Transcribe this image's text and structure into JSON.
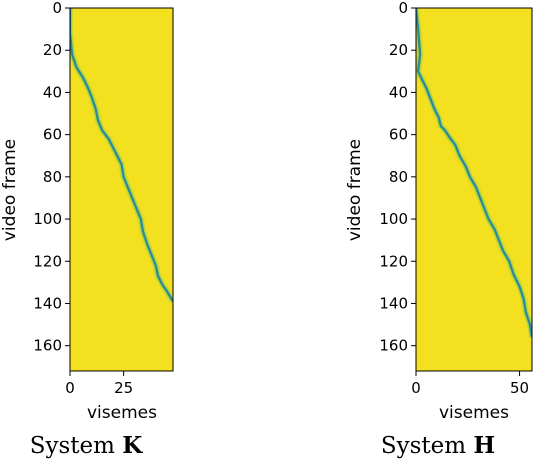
{
  "colors": {
    "background": "#f3e11f",
    "path_core": "#2a8a9a",
    "path_halo": "#5fc06a"
  },
  "chart_data": [
    {
      "type": "heatmap",
      "caption_prefix": "System",
      "caption_system": "K",
      "xlabel": "visemes",
      "ylabel": "video frame",
      "xlim": [
        0,
        48
      ],
      "ylim": [
        0,
        172
      ],
      "y_inverted": true,
      "xticks": [
        "0",
        "25"
      ],
      "yticks": [
        "0",
        "20",
        "40",
        "60",
        "80",
        "100",
        "120",
        "140",
        "160"
      ],
      "alignment_path": [
        [
          0,
          0
        ],
        [
          0,
          12
        ],
        [
          1,
          22
        ],
        [
          3,
          28
        ],
        [
          6,
          33
        ],
        [
          8,
          37
        ],
        [
          10,
          42
        ],
        [
          12,
          48
        ],
        [
          13,
          53
        ],
        [
          15,
          58
        ],
        [
          18,
          62
        ],
        [
          20,
          66
        ],
        [
          22,
          70
        ],
        [
          24,
          74
        ],
        [
          25,
          80
        ],
        [
          27,
          85
        ],
        [
          29,
          90
        ],
        [
          31,
          95
        ],
        [
          33,
          100
        ],
        [
          34,
          106
        ],
        [
          36,
          112
        ],
        [
          38,
          117
        ],
        [
          40,
          122
        ],
        [
          41,
          127
        ],
        [
          43,
          131
        ],
        [
          45,
          134
        ],
        [
          48,
          139
        ]
      ]
    },
    {
      "type": "heatmap",
      "caption_prefix": "System",
      "caption_system": "H",
      "xlabel": "visemes",
      "ylabel": "video frame",
      "xlim": [
        0,
        56
      ],
      "ylim": [
        0,
        172
      ],
      "y_inverted": true,
      "xticks": [
        "0",
        "50"
      ],
      "yticks": [
        "0",
        "20",
        "40",
        "60",
        "80",
        "100",
        "120",
        "140",
        "160"
      ],
      "alignment_path": [
        [
          0,
          0
        ],
        [
          1,
          10
        ],
        [
          2,
          22
        ],
        [
          1,
          30
        ],
        [
          3,
          34
        ],
        [
          5,
          38
        ],
        [
          7,
          43
        ],
        [
          9,
          48
        ],
        [
          11,
          52
        ],
        [
          12,
          56
        ],
        [
          14,
          58
        ],
        [
          16,
          61
        ],
        [
          19,
          65
        ],
        [
          21,
          70
        ],
        [
          24,
          75
        ],
        [
          26,
          80
        ],
        [
          29,
          85
        ],
        [
          31,
          90
        ],
        [
          33,
          95
        ],
        [
          35,
          100
        ],
        [
          38,
          105
        ],
        [
          40,
          110
        ],
        [
          42,
          115
        ],
        [
          45,
          120
        ],
        [
          47,
          126
        ],
        [
          50,
          132
        ],
        [
          52,
          138
        ],
        [
          53,
          144
        ],
        [
          55,
          150
        ],
        [
          56,
          156
        ]
      ]
    }
  ]
}
